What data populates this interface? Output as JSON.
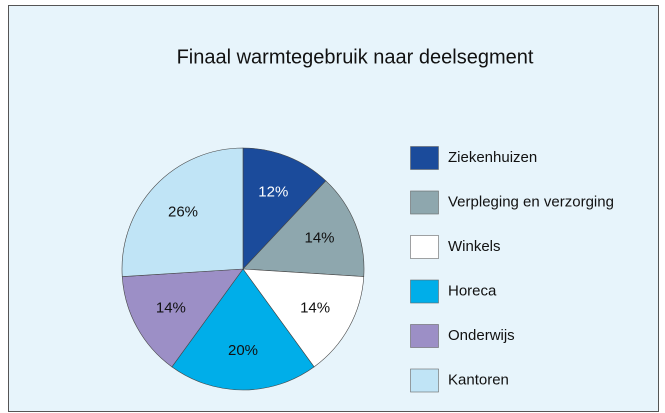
{
  "chart_data": {
    "type": "pie",
    "title": "Finaal warmtegebruik naar deelsegment",
    "categories": [
      "Ziekenhuizen",
      "Verpleging en verzorging",
      "Winkels",
      "Horeca",
      "Onderwijs",
      "Kantoren"
    ],
    "values": [
      12,
      14,
      14,
      20,
      14,
      26
    ],
    "value_labels": [
      "12%",
      "14%",
      "14%",
      "20%",
      "14%",
      "26%"
    ],
    "colors": [
      "#1b4b9b",
      "#8ea7ae",
      "#ffffff",
      "#00aee9",
      "#9c8fc6",
      "#c0e4f6"
    ],
    "legend": "right"
  }
}
